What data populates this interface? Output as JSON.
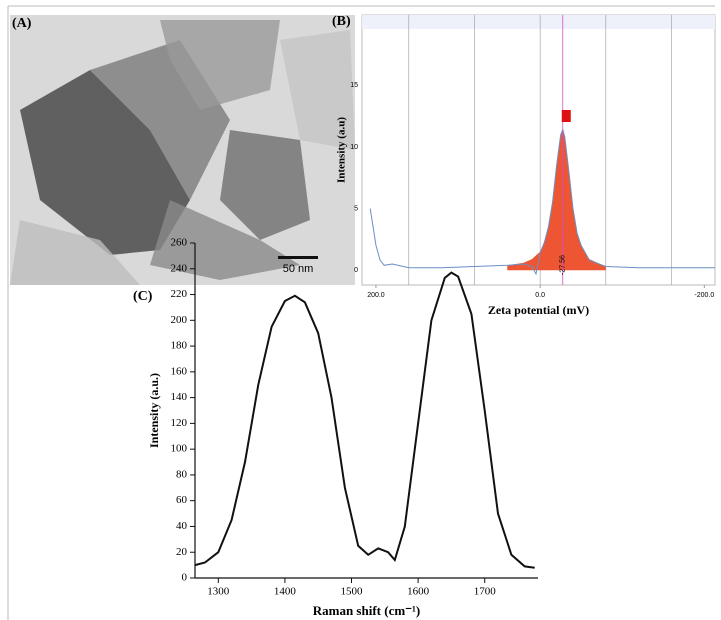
{
  "chart_data": [
    {
      "type": "image",
      "title": "(A)",
      "scale_bar": "50 nm"
    },
    {
      "type": "line",
      "title": "(B)",
      "xlabel": "Zeta potential (mV)",
      "ylabel": "Intensity (a.u)",
      "xlim": [
        217,
        -213
      ],
      "ylim": [
        -1.2,
        20.7
      ],
      "xticks": [
        {
          "value": 200,
          "label": "200.0"
        },
        {
          "value": 0,
          "label": "0.0"
        },
        {
          "value": -200,
          "label": "-200.0"
        }
      ],
      "yticks": [
        0,
        5,
        10,
        15
      ],
      "xgrid": [
        160,
        80,
        0,
        -80,
        -160
      ],
      "annotation": -27.56,
      "series": [
        {
          "color": "#ee5533",
          "fill": true,
          "x": [
            40,
            20,
            10,
            0,
            -5,
            -10,
            -15,
            -20,
            -25,
            -27.56,
            -30,
            -35,
            -40,
            -45,
            -50,
            -60,
            -80
          ],
          "values": [
            0.4,
            0.6,
            0.9,
            1.5,
            2.3,
            3.6,
            5.6,
            8.5,
            11,
            11.4,
            10.8,
            8,
            5,
            3,
            2,
            0.9,
            0.3
          ]
        },
        {
          "color": "#6b8fc4",
          "fill": false,
          "x": [
            207,
            200,
            195,
            190,
            180,
            160,
            120,
            80,
            40,
            20,
            10,
            5,
            0,
            -5,
            -10,
            -15,
            -20,
            -25,
            -27.56,
            -30,
            -35,
            -40,
            -45,
            -50,
            -60,
            -80,
            -120,
            -160,
            -200,
            -213
          ],
          "values": [
            5,
            2,
            0.8,
            0.4,
            0.5,
            0.2,
            0.2,
            0.3,
            0.4,
            0.5,
            0.3,
            -0.3,
            1.4,
            2.2,
            3.5,
            5.5,
            8.5,
            11,
            11.4,
            10.8,
            8,
            5,
            3,
            2,
            0.8,
            0.3,
            0.2,
            0.2,
            0.2,
            0.2
          ]
        }
      ]
    },
    {
      "type": "line",
      "title": "(C)",
      "xlabel": "Raman shift (cm⁻¹)",
      "ylabel": "Intensity (a.u.)",
      "xlim": [
        1265,
        1780
      ],
      "ylim": [
        0,
        260
      ],
      "xticks": [
        1300,
        1400,
        1500,
        1600,
        1700
      ],
      "yticks": [
        0,
        20,
        40,
        60,
        80,
        100,
        120,
        140,
        160,
        180,
        200,
        220,
        240,
        260
      ],
      "series": [
        {
          "color": "#111111",
          "fill": false,
          "x": [
            1265,
            1280,
            1300,
            1320,
            1340,
            1360,
            1380,
            1400,
            1415,
            1430,
            1450,
            1470,
            1490,
            1510,
            1525,
            1540,
            1555,
            1565,
            1580,
            1600,
            1620,
            1640,
            1650,
            1660,
            1680,
            1700,
            1720,
            1740,
            1760,
            1775
          ],
          "values": [
            10,
            12,
            20,
            45,
            90,
            150,
            195,
            215,
            219,
            214,
            190,
            140,
            70,
            25,
            18,
            23,
            20,
            14,
            40,
            120,
            200,
            233,
            237,
            234,
            205,
            130,
            50,
            18,
            9,
            8
          ]
        }
      ]
    }
  ]
}
